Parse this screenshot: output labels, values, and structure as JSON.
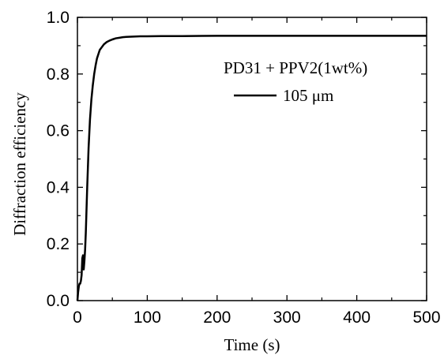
{
  "chart_data": {
    "type": "line",
    "title": "",
    "xlabel": "Time (s)",
    "ylabel": "Diffraction efficiency",
    "xlim": [
      0,
      500
    ],
    "ylim": [
      0,
      1.0
    ],
    "x_ticks": [
      0,
      100,
      200,
      300,
      400,
      500
    ],
    "y_ticks": [
      "0.0",
      "0.2",
      "0.4",
      "0.6",
      "0.8",
      "1.0"
    ],
    "grid": false,
    "legend": {
      "placement": "top-right",
      "header": "PD31 + PPV2(1wt%)",
      "entries": [
        "105 μm"
      ]
    },
    "series": [
      {
        "name": "105 μm",
        "color": "#000000",
        "x": [
          0,
          1,
          2,
          3,
          4,
          5,
          6,
          7,
          8,
          9,
          10,
          11,
          12,
          13,
          14,
          15,
          16,
          18,
          20,
          22,
          24,
          26,
          28,
          30,
          32,
          35,
          38,
          42,
          46,
          50,
          55,
          60,
          65,
          70,
          80,
          90,
          100,
          120,
          150,
          200,
          250,
          300,
          350,
          400,
          450,
          500
        ],
        "y": [
          0.0,
          0.03,
          0.05,
          0.06,
          0.06,
          0.07,
          0.09,
          0.15,
          0.16,
          0.11,
          0.14,
          0.18,
          0.24,
          0.32,
          0.4,
          0.47,
          0.54,
          0.64,
          0.71,
          0.76,
          0.8,
          0.83,
          0.855,
          0.87,
          0.885,
          0.895,
          0.905,
          0.913,
          0.918,
          0.922,
          0.926,
          0.928,
          0.93,
          0.931,
          0.932,
          0.933,
          0.933,
          0.934,
          0.934,
          0.935,
          0.935,
          0.935,
          0.935,
          0.935,
          0.935,
          0.935
        ]
      }
    ]
  }
}
